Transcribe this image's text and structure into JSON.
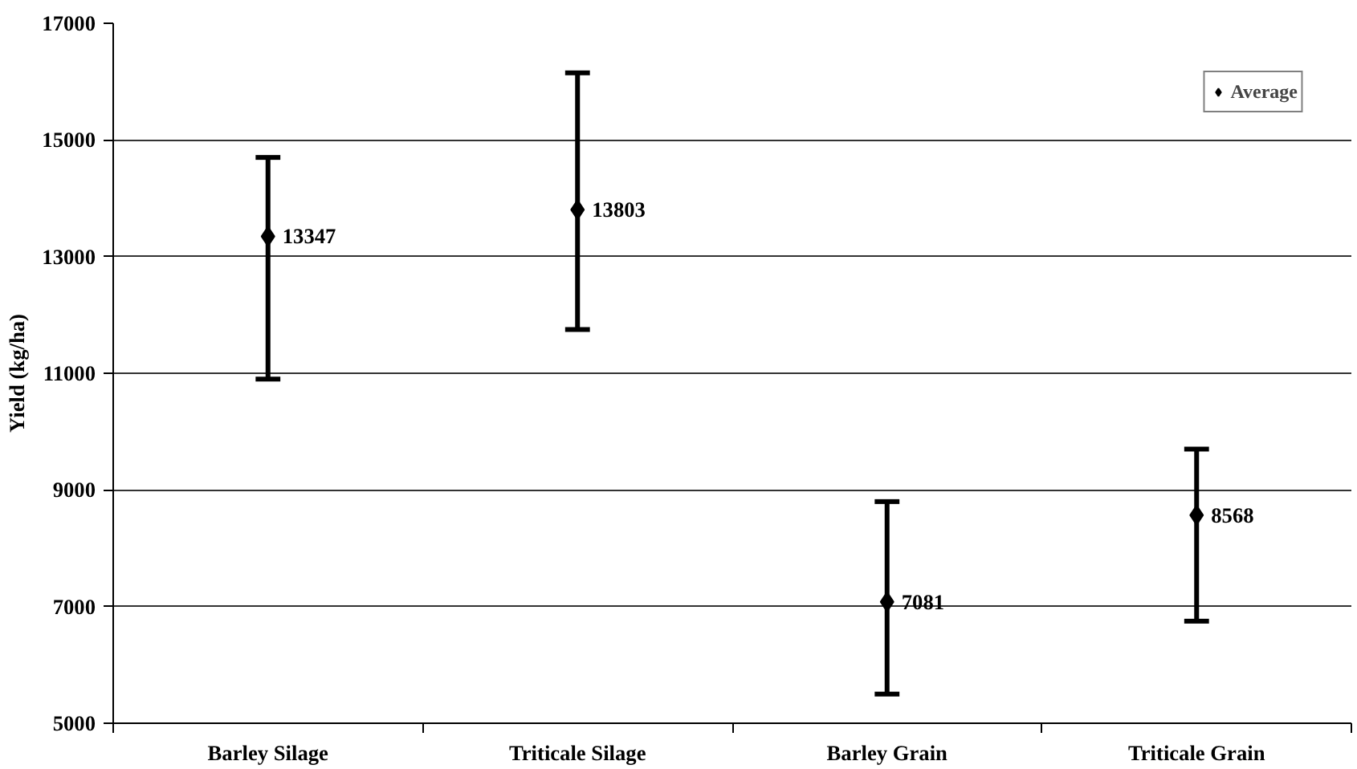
{
  "chart_data": {
    "type": "scatter",
    "ylabel": "Yield (kg/ha)",
    "categories": [
      "Barley Silage",
      "Triticale Silage",
      "Barley Grain",
      "Triticale Grain"
    ],
    "series": [
      {
        "name": "Average",
        "color": "#000000",
        "values": [
          13347,
          13803,
          7081,
          8568
        ],
        "errors": [
          [
            10900,
            14700
          ],
          [
            11750,
            16150
          ],
          [
            5500,
            8800
          ],
          [
            6750,
            9700
          ]
        ]
      }
    ],
    "data_labels": true,
    "marker": "diamond",
    "ylim": [
      5000,
      17000
    ],
    "yticks": [
      5000,
      7000,
      9000,
      11000,
      13000,
      15000,
      17000
    ],
    "grid": "y",
    "legend": "top right"
  }
}
